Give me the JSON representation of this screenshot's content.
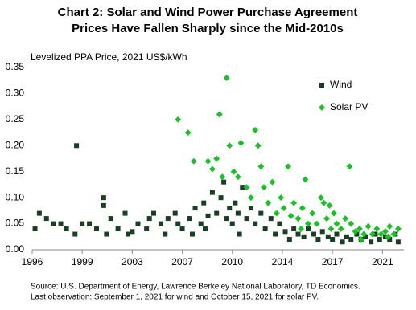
{
  "chart_data": {
    "type": "scatter",
    "title": "Chart 2: Solar and Wind Power Purchase Agreement",
    "subtitle": "Prices Have Fallen Sharply since the Mid-2010s",
    "y_label": "Levelized PPA Price, 2021 US$/kWh",
    "xlim": [
      1996,
      2022
    ],
    "xticks": [
      1996,
      {
        "value": 1999.5,
        "label": "1999"
      },
      2003,
      {
        "value": 2006.5,
        "label": "2007"
      },
      2010,
      {
        "value": 2013.5,
        "label": "2014"
      },
      2017,
      {
        "value": 2020.5,
        "label": "2021"
      }
    ],
    "ylim": [
      0,
      0.35
    ],
    "yticks": [
      {
        "value": 0,
        "label": "0.00"
      },
      0.05,
      {
        "value": 0.1,
        "label": "0.10"
      },
      0.15,
      {
        "value": 0.2,
        "label": "0.20"
      },
      0.25,
      {
        "value": 0.3,
        "label": "0.30"
      },
      0.35
    ],
    "grid": false,
    "legend": "upper right",
    "series": [
      {
        "name": "Wind",
        "color": "#1b3d24",
        "marker": "square",
        "x": [
          1996.2,
          1996.5,
          1997,
          1997.5,
          1998,
          1998.4,
          1999.1,
          1999,
          1999.5,
          2000,
          2000.5,
          2001,
          2001,
          2001.5,
          2002,
          2002.5,
          2003,
          2003.4,
          2004,
          2004.5,
          2005,
          2005.5,
          2006,
          2006.5,
          2007,
          2007.4,
          2007.8,
          2008,
          2008.3,
          2008.6,
          2008.9,
          2009.2,
          2009.4,
          2009.6,
          2009.8,
          2010,
          2010.2,
          2010.4,
          2010.7,
          2011,
          2011.3,
          2011.6,
          2012,
          2012.3,
          2012.7,
          2013,
          2013.3,
          2013.7,
          2014,
          2014.3,
          2014.6,
          2015,
          2015.3,
          2015.7,
          2016,
          2016.3,
          2016.7,
          2017,
          2017.3,
          2017.7,
          2018,
          2018.3,
          2018.7,
          2019,
          2019.3,
          2019.7,
          2020,
          2020.3,
          2020.7,
          2021,
          2021.4,
          2021.6,
          2001.2,
          2005.3,
          2007.2,
          2010.5,
          2002.7,
          2004.2,
          2006.2,
          2008.1
        ],
        "values": [
          0.04,
          0.07,
          0.06,
          0.05,
          0.05,
          0.04,
          0.2,
          0.03,
          0.05,
          0.05,
          0.04,
          0.1,
          0.085,
          0.06,
          0.04,
          0.07,
          0.035,
          0.05,
          0.04,
          0.07,
          0.05,
          0.06,
          0.07,
          0.04,
          0.06,
          0.08,
          0.05,
          0.09,
          0.065,
          0.11,
          0.07,
          0.1,
          0.13,
          0.06,
          0.08,
          0.05,
          0.09,
          0.07,
          0.12,
          0.06,
          0.08,
          0.05,
          0.07,
          0.04,
          0.06,
          0.03,
          0.05,
          0.035,
          0.02,
          0.04,
          0.03,
          0.025,
          0.04,
          0.03,
          0.02,
          0.035,
          0.025,
          0.02,
          0.03,
          0.015,
          0.025,
          0.02,
          0.03,
          0.02,
          0.025,
          0.015,
          0.03,
          0.02,
          0.025,
          0.02,
          0.03,
          0.015,
          0.03,
          0.03,
          0.03,
          0.03,
          0.03,
          0.06,
          0.05,
          0.04
        ]
      },
      {
        "name": "Solar PV",
        "color": "#1fbf2c",
        "marker": "diamond",
        "x": [
          2006.2,
          2006.9,
          2007.3,
          2008.3,
          2008.6,
          2008.9,
          2009.1,
          2009.3,
          2009.6,
          2009.8,
          2010.1,
          2010.4,
          2010.6,
          2011,
          2011.3,
          2011.6,
          2011.8,
          2012.2,
          2012.5,
          2012.8,
          2013.1,
          2013.4,
          2013.6,
          2013.9,
          2014.1,
          2014.3,
          2014.6,
          2014.9,
          2015.1,
          2015.3,
          2015.6,
          2015.9,
          2016.2,
          2016.4,
          2016.6,
          2016.9,
          2017.1,
          2017.3,
          2017.6,
          2017.9,
          2018.2,
          2018.3,
          2018.6,
          2018.9,
          2019.2,
          2019.5,
          2019.8,
          2020.1,
          2020.4,
          2020.7,
          2021,
          2021.3,
          2021.6,
          2012,
          2016.8,
          2014.8,
          2019,
          2020.9
        ],
        "values": [
          0.25,
          0.225,
          0.17,
          0.17,
          0.155,
          0.175,
          0.26,
          0.14,
          0.33,
          0.2,
          0.15,
          0.14,
          0.205,
          0.12,
          0.1,
          0.23,
          0.2,
          0.12,
          0.09,
          0.13,
          0.07,
          0.1,
          0.08,
          0.16,
          0.065,
          0.09,
          0.06,
          0.08,
          0.135,
          0.05,
          0.07,
          0.05,
          0.1,
          0.09,
          0.06,
          0.04,
          0.07,
          0.05,
          0.04,
          0.06,
          0.16,
          0.05,
          0.035,
          0.04,
          0.03,
          0.045,
          0.03,
          0.04,
          0.03,
          0.035,
          0.045,
          0.03,
          0.04,
          0.16,
          0.085,
          0.04,
          0.02,
          0.025
        ]
      }
    ],
    "source": "Source: U.S. Department of Energy, Lawrence Berkeley National Laboratory, TD Economics.",
    "note": "Last observation: September 1, 2021 for wind and October 15, 2021 for solar PV."
  }
}
